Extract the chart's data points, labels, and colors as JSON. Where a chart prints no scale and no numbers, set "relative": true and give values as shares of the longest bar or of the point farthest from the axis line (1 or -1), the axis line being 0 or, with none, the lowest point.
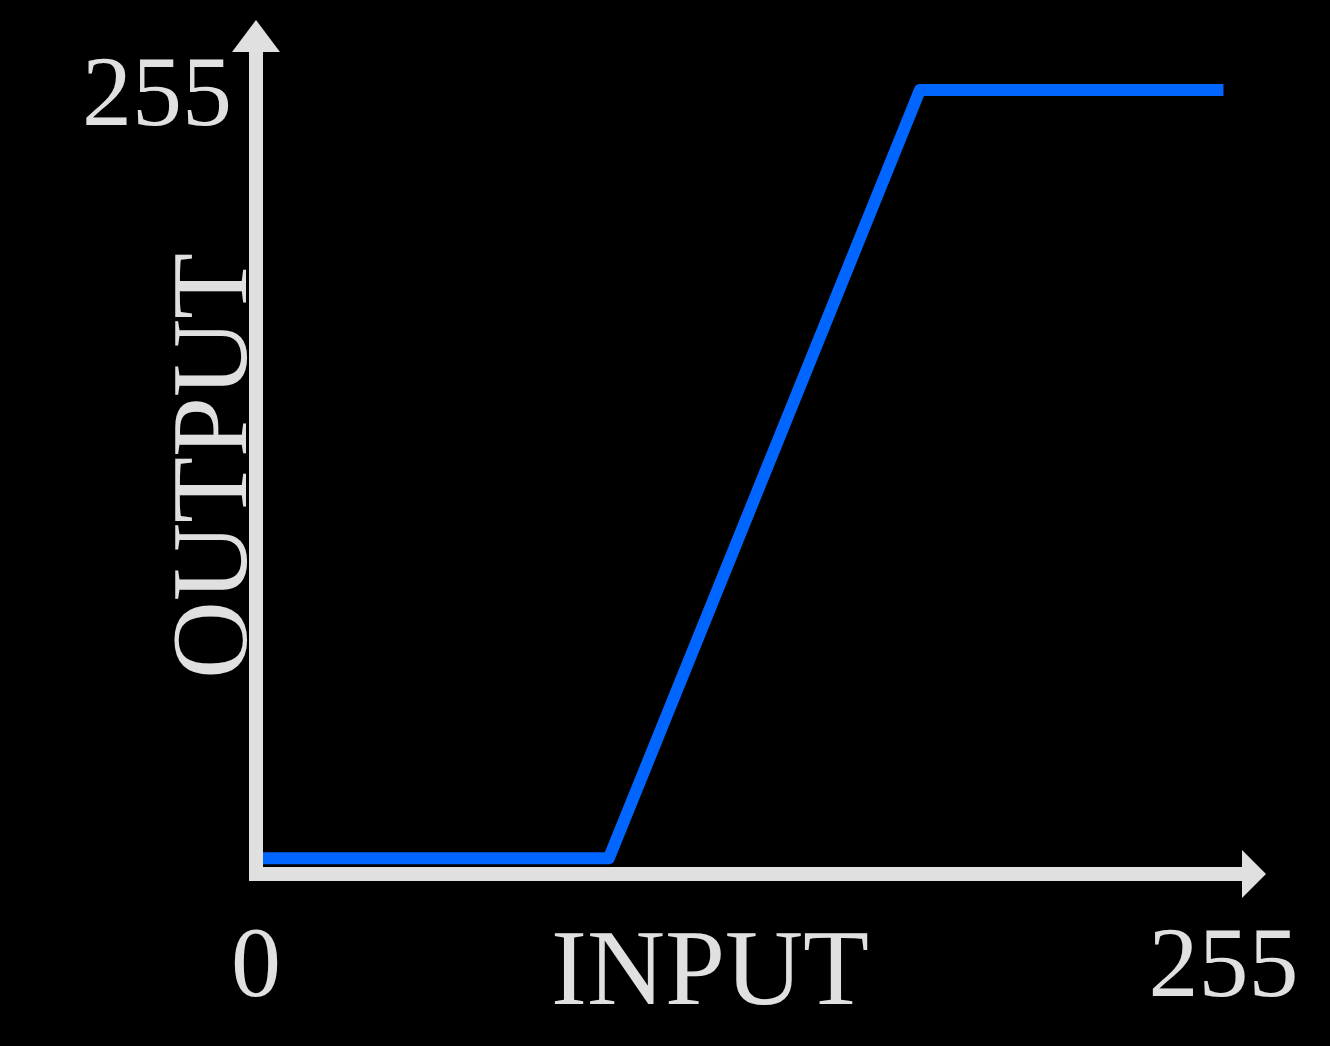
{
  "chart_data": {
    "type": "line",
    "xlabel": "INPUT",
    "ylabel": "OUTPUT",
    "relative": true,
    "x": [
      0,
      93,
      175,
      255
    ],
    "series": [
      {
        "color": "#0066ff",
        "values": [
          0.02,
          0.02,
          1,
          1
        ]
      }
    ],
    "xlim": [
      0,
      262
    ],
    "xticks": [
      0,
      255
    ],
    "annotations": [
      "255"
    ],
    "grid": false,
    "marker": "none",
    "line_style": "solid"
  }
}
